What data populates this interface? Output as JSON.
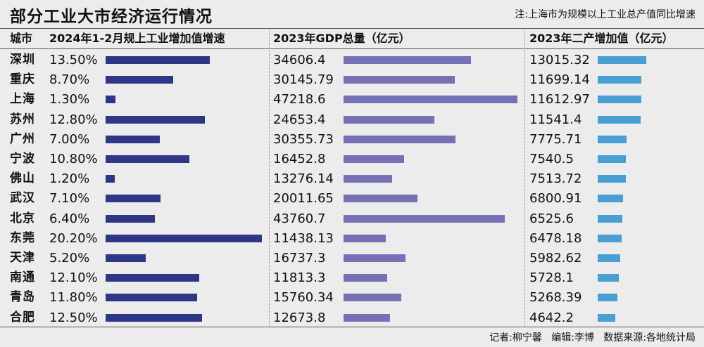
{
  "title": "部分工业大市经济运行情况",
  "note": "注:上海市为规模以上工业总产值同比增速",
  "headers": {
    "city": "城市",
    "col1": "2024年1-2月规上工业增加值增速",
    "col2": "2023年GDP总量（亿元）",
    "col3": "2023年二产增加值（亿元）"
  },
  "footer": {
    "reporter": "记者:柳宁馨",
    "editor": "编辑:李博",
    "source": "数据来源:各地统计局"
  },
  "colors": {
    "series1": "#2e3685",
    "series2": "#7670b4",
    "series3": "#4a9fd2"
  },
  "chart_data": {
    "type": "bar",
    "title": "部分工业大市经济运行情况",
    "categories": [
      "深圳",
      "重庆",
      "上海",
      "苏州",
      "广州",
      "宁波",
      "佛山",
      "武汉",
      "北京",
      "东莞",
      "天津",
      "南通",
      "青岛",
      "合肥"
    ],
    "series": [
      {
        "name": "2024年1-2月规上工业增加值增速",
        "values": [
          13.5,
          8.7,
          1.3,
          12.8,
          7.0,
          10.8,
          1.2,
          7.1,
          6.4,
          20.2,
          5.2,
          12.1,
          11.8,
          12.5
        ],
        "labels": [
          "13.50%",
          "8.70%",
          "1.30%",
          "12.80%",
          "7.00%",
          "10.80%",
          "1.20%",
          "7.10%",
          "6.40%",
          "20.20%",
          "5.20%",
          "12.10%",
          "11.80%",
          "12.50%"
        ]
      },
      {
        "name": "2023年GDP总量（亿元）",
        "values": [
          34606.4,
          30145.79,
          47218.6,
          24653.4,
          30355.73,
          16452.8,
          13276.14,
          20011.65,
          43760.7,
          11438.13,
          16737.3,
          11813.3,
          15760.34,
          12673.8
        ],
        "labels": [
          "34606.4",
          "30145.79",
          "47218.6",
          "24653.4",
          "30355.73",
          "16452.8",
          "13276.14",
          "20011.65",
          "43760.7",
          "11438.13",
          "16737.3",
          "11813.3",
          "15760.34",
          "12673.8"
        ]
      },
      {
        "name": "2023年二产增加值（亿元）",
        "values": [
          13015.32,
          11699.14,
          11612.97,
          11541.4,
          7775.71,
          7540.5,
          7513.72,
          6800.91,
          6525.6,
          6478.18,
          5982.62,
          5728.1,
          5268.39,
          4642.2
        ],
        "labels": [
          "13015.32",
          "11699.14",
          "11612.97",
          "11541.4",
          "7775.71",
          "7540.5",
          "7513.72",
          "6800.91",
          "6525.6",
          "6478.18",
          "5982.62",
          "5728.1",
          "5268.39",
          "4642.2"
        ]
      }
    ]
  }
}
